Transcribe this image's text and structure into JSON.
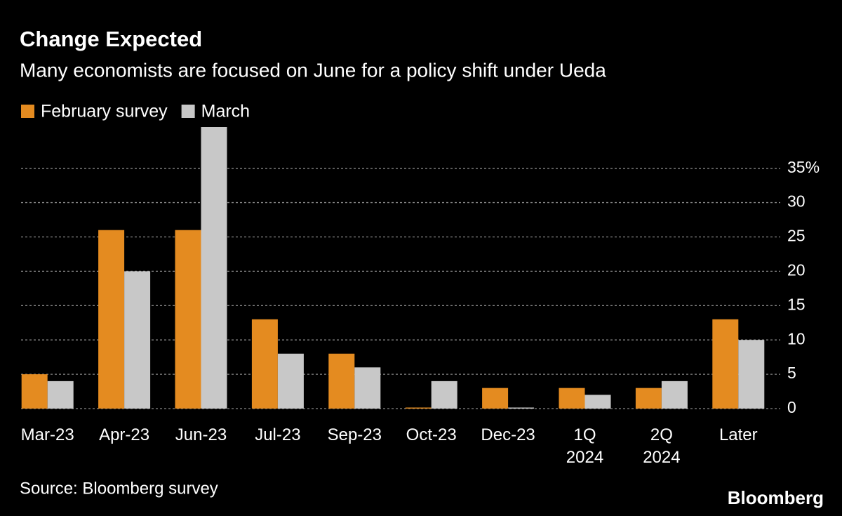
{
  "chart_data": {
    "type": "bar",
    "title": "Change Expected",
    "subtitle": "Many economists are focused on June for a policy shift under Ueda",
    "source": "Source: Bloomberg survey",
    "brand": "Bloomberg",
    "categories": [
      "Mar-23",
      "Apr-23",
      "Jun-23",
      "Jul-23",
      "Sep-23",
      "Oct-23",
      "Dec-23",
      "1Q\n2024",
      "2Q\n2024",
      "Later"
    ],
    "series": [
      {
        "name": "February survey",
        "color": "#e48b20",
        "values": [
          5,
          26,
          26,
          13,
          8,
          0,
          3,
          3,
          3,
          13
        ]
      },
      {
        "name": "March",
        "color": "#c8c8c8",
        "values": [
          4,
          20,
          41,
          8,
          6,
          4,
          0,
          2,
          4,
          10
        ]
      }
    ],
    "ylim": [
      0,
      41
    ],
    "yticks": [
      0,
      5,
      10,
      15,
      20,
      25,
      30,
      {
        "value": 35,
        "label": "35%"
      }
    ],
    "grid": true
  }
}
